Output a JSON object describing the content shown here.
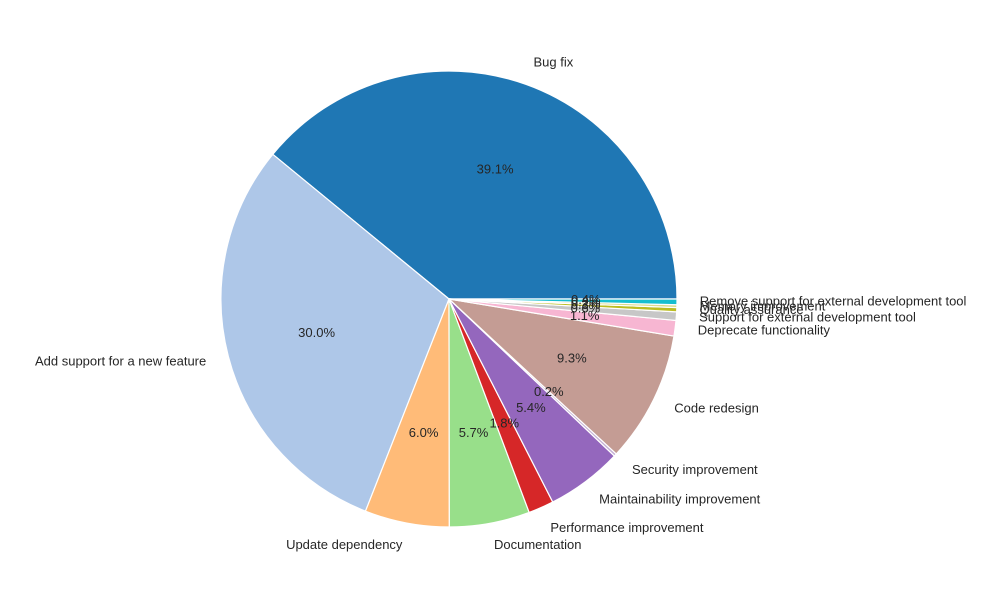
{
  "chart_data": {
    "type": "pie",
    "start_angle_deg": 0,
    "direction": "counterclockwise",
    "slices": [
      {
        "label": "Bug fix",
        "value": 39.1,
        "pct_label": "39.1%",
        "color": "#1f77b4"
      },
      {
        "label": "Add support for a new feature",
        "value": 30.0,
        "pct_label": "30.0%",
        "color": "#aec7e8"
      },
      {
        "label": "Update dependency",
        "value": 6.0,
        "pct_label": "6.0%",
        "color": "#ffbb78"
      },
      {
        "label": "Documentation",
        "value": 5.7,
        "pct_label": "5.7%",
        "color": "#98df8a"
      },
      {
        "label": "Performance improvement",
        "value": 1.8,
        "pct_label": "1.8%",
        "color": "#d62728"
      },
      {
        "label": "Maintainability improvement",
        "value": 5.4,
        "pct_label": "5.4%",
        "color": "#9467bd"
      },
      {
        "label": "Security improvement",
        "value": 0.2,
        "pct_label": "0.2%",
        "color": "#c5b0d5"
      },
      {
        "label": "Code redesign",
        "value": 9.3,
        "pct_label": "9.3%",
        "color": "#c49c94"
      },
      {
        "label": "Deprecate functionality",
        "value": 1.1,
        "pct_label": "1.1%",
        "color": "#f7b6d2"
      },
      {
        "label": "Support for external development tool",
        "value": 0.6,
        "pct_label": "0.6%",
        "color": "#c7c7c7"
      },
      {
        "label": "Quality assurance",
        "value": 0.3,
        "pct_label": "0.3%",
        "color": "#bcbd22"
      },
      {
        "label": "Memory improvement",
        "value": 0.2,
        "pct_label": "0.2%",
        "color": "#dbdb8d"
      },
      {
        "label": "Remove support for external development tool",
        "value": 0.4,
        "pct_label": "0.4%",
        "color": "#17becf"
      }
    ]
  }
}
